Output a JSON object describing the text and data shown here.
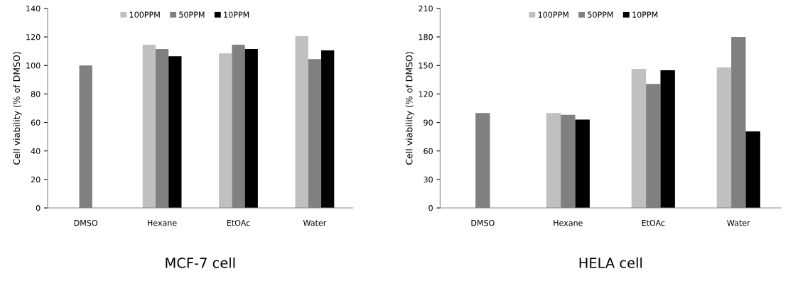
{
  "chart_data": [
    {
      "type": "bar",
      "title": "MCF-7 cell",
      "ylabel": "Cell viability (% of DMSO)",
      "categories": [
        "DMSO",
        "Hexane",
        "EtOAc",
        "Water"
      ],
      "series": [
        {
          "name": "100PPM",
          "color": "#c0c0c0",
          "values": [
            null,
            114.5,
            108.5,
            120.5
          ]
        },
        {
          "name": "50PPM",
          "color": "#808080",
          "values": [
            100,
            111.5,
            114.5,
            104.5
          ]
        },
        {
          "name": "10PPM",
          "color": "#000000",
          "values": [
            null,
            106.5,
            111.5,
            110.5
          ]
        }
      ],
      "ylim": [
        0,
        140
      ],
      "yticks": [
        0,
        20,
        40,
        60,
        80,
        100,
        120,
        140
      ],
      "grid": false,
      "legend": "top"
    },
    {
      "type": "bar",
      "title": "HELA cell",
      "ylabel": "Cell viability (% of DMSO)",
      "categories": [
        "DMSO",
        "Hexane",
        "EtOAc",
        "Water"
      ],
      "series": [
        {
          "name": "100PPM",
          "color": "#c0c0c0",
          "values": [
            null,
            100,
            146.5,
            148
          ]
        },
        {
          "name": "50PPM",
          "color": "#808080",
          "values": [
            100,
            98,
            130.5,
            180
          ]
        },
        {
          "name": "10PPM",
          "color": "#000000",
          "values": [
            null,
            93,
            145,
            80.5
          ]
        }
      ],
      "ylim": [
        0,
        210
      ],
      "yticks": [
        0,
        30,
        60,
        90,
        120,
        150,
        180,
        210
      ],
      "grid": false,
      "legend": "top"
    }
  ]
}
